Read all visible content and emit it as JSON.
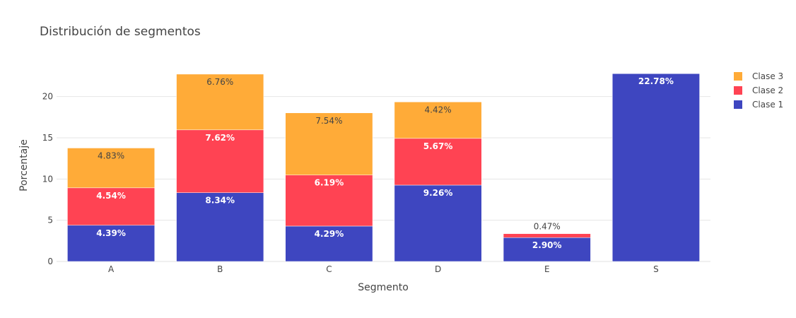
{
  "chart_data": {
    "type": "bar",
    "stacked": true,
    "title": "Distribución de segmentos",
    "xlabel": "Segmento",
    "ylabel": "Porcentaje",
    "categories": [
      "A",
      "B",
      "C",
      "D",
      "E",
      "S"
    ],
    "ylim": [
      0,
      24
    ],
    "yticks": [
      0,
      5,
      10,
      15,
      20
    ],
    "grid": true,
    "legend_position": "top-right",
    "series": [
      {
        "name": "Clase 1",
        "color": "#3e46c0",
        "values": [
          4.39,
          8.34,
          4.29,
          9.26,
          2.9,
          22.78
        ],
        "labels": [
          "4.39%",
          "8.34%",
          "4.29%",
          "9.26%",
          "2.90%",
          "22.78%"
        ]
      },
      {
        "name": "Clase 2",
        "color": "#ff4353",
        "values": [
          4.54,
          7.62,
          6.19,
          5.67,
          0.47,
          0
        ],
        "labels": [
          "4.54%",
          "7.62%",
          "6.19%",
          "5.67%",
          "0.47%",
          ""
        ]
      },
      {
        "name": "Clase 3",
        "color": "#ffab38",
        "values": [
          4.83,
          6.76,
          7.54,
          4.42,
          0,
          0
        ],
        "labels": [
          "4.83%",
          "6.76%",
          "7.54%",
          "4.42%",
          "",
          ""
        ]
      }
    ]
  }
}
